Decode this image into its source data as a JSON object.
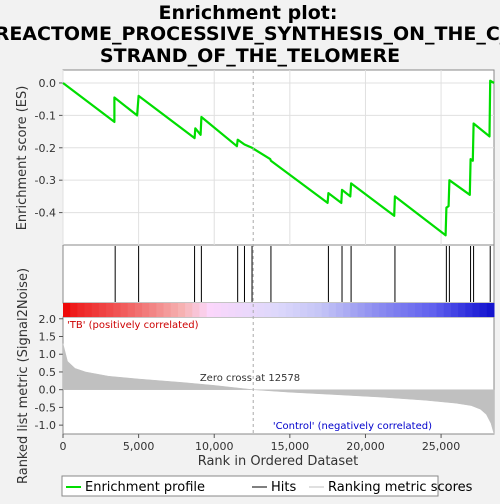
{
  "title": {
    "line1": "Enrichment plot:",
    "line2": "REACTOME_PROCESSIVE_SYNTHESIS_ON_THE_C_",
    "line3": "STRAND_OF_THE_TELOMERE"
  },
  "colors": {
    "es_line": "#00dd00",
    "hit": "#000000",
    "metric_fill": "#c0c0c0",
    "zero_cross": "#aaaaaa",
    "pos_label": "#cc0000",
    "neg_label": "#0000cc"
  },
  "chart_data": {
    "type": "line",
    "es_panel": {
      "ylabel": "Enrichment score (ES)",
      "ylim": [
        -0.5,
        0.04
      ],
      "yticks": [
        "0.0",
        "-0.1",
        "-0.2",
        "-0.3",
        "-0.4"
      ],
      "ytick_values": [
        0.0,
        -0.1,
        -0.2,
        -0.3,
        -0.4
      ],
      "series": [
        {
          "x": [
            0,
            3400,
            3400,
            4900,
            5000,
            8700,
            8750,
            9100,
            9150,
            11500,
            11550,
            12000,
            12500,
            13700,
            13750,
            17500,
            17550,
            18400,
            18450,
            19000,
            19050,
            21900,
            21950,
            25300,
            25350,
            25500,
            25550,
            26900,
            26950,
            27100,
            27150,
            28200,
            28250,
            28500
          ],
          "y": [
            0.0,
            -0.12,
            -0.045,
            -0.1,
            -0.04,
            -0.17,
            -0.14,
            -0.16,
            -0.105,
            -0.195,
            -0.175,
            -0.19,
            -0.2,
            -0.235,
            -0.24,
            -0.37,
            -0.34,
            -0.37,
            -0.33,
            -0.35,
            -0.31,
            -0.41,
            -0.35,
            -0.47,
            -0.385,
            -0.38,
            -0.3,
            -0.345,
            -0.235,
            -0.24,
            -0.125,
            -0.165,
            0.007,
            0.0
          ]
        }
      ]
    },
    "hits": [
      3450,
      5000,
      8700,
      9150,
      11550,
      12000,
      12500,
      13750,
      17550,
      18450,
      19050,
      21950,
      25350,
      25550,
      26950,
      27150,
      28250
    ],
    "metric_panel": {
      "ylabel": "Ranked list metric (Signal2Noise)",
      "ylim": [
        -1.25,
        2.05
      ],
      "yticks": [
        "2.0",
        "1.5",
        "1.0",
        "0.5",
        "0.0",
        "-0.5",
        "-1.0"
      ],
      "ytick_values": [
        2.0,
        1.5,
        1.0,
        0.5,
        0.0,
        -0.5,
        -1.0
      ],
      "curve": {
        "x": [
          0,
          300,
          800,
          1500,
          3000,
          5000,
          8000,
          10000,
          12578,
          15000,
          18000,
          21000,
          24000,
          26000,
          27000,
          27600,
          28000,
          28300,
          28500
        ],
        "y": [
          1.3,
          0.8,
          0.6,
          0.5,
          0.38,
          0.3,
          0.2,
          0.12,
          0.0,
          -0.07,
          -0.14,
          -0.21,
          -0.3,
          -0.38,
          -0.45,
          -0.55,
          -0.7,
          -0.95,
          -1.25
        ]
      },
      "zero_cross_label": "Zero cross at 12578",
      "zero_cross_x": 12578,
      "pos_label": "'TB' (positively correlated)",
      "neg_label": "'Control' (negatively correlated)"
    },
    "xlabel": "Rank in Ordered Dataset",
    "xlim": [
      0,
      28500
    ],
    "xticks": [
      "0",
      "5,000",
      "10,000",
      "15,000",
      "20,000",
      "25,000"
    ],
    "xtick_values": [
      0,
      5000,
      10000,
      15000,
      20000,
      25000
    ],
    "legend": [
      "Enrichment profile",
      "Hits",
      "Ranking metric scores"
    ],
    "legend_placement": "bottom"
  }
}
